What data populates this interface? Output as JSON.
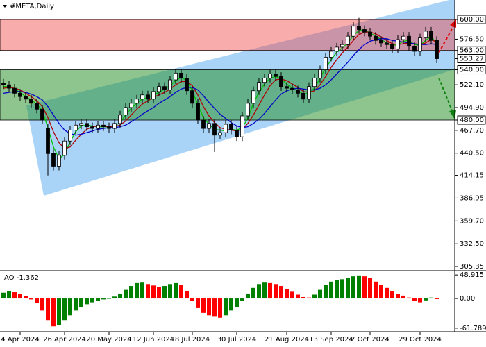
{
  "chart_data": [
    {
      "type": "candlestick",
      "title": "#META,Daily",
      "categories": [
        null,
        null,
        null,
        "4 Apr 2024",
        null,
        null,
        null,
        null,
        null,
        null,
        null,
        "26 Apr 2024",
        null,
        null,
        null,
        null,
        null,
        null,
        null,
        "20 May 2024",
        null,
        null,
        null,
        null,
        null,
        null,
        null,
        "12 Jun 2024",
        null,
        null,
        null,
        null,
        null,
        null,
        "8 Jul 2024",
        null,
        null,
        null,
        null,
        null,
        null,
        null,
        "30 Jul 2024",
        null,
        null,
        null,
        null,
        null,
        null,
        null,
        null,
        "21 Aug 2024",
        null,
        null,
        null,
        null,
        null,
        null,
        null,
        "13 Sep 2024",
        null,
        null,
        null,
        null,
        null,
        null,
        "7 Oct 2024",
        null,
        null,
        null,
        null,
        null,
        null,
        null,
        null,
        "29 Oct 2024",
        null,
        null,
        null
      ],
      "open": [
        524,
        522,
        518,
        512,
        508,
        505,
        500,
        493,
        470,
        440,
        425,
        438,
        455,
        468,
        474,
        476,
        472,
        470,
        474,
        472,
        470,
        476,
        486,
        495,
        500,
        505,
        510,
        505,
        514,
        520,
        516,
        528,
        536,
        530,
        515,
        500,
        480,
        470,
        476,
        462,
        465,
        475,
        468,
        460,
        485,
        500,
        515,
        525,
        530,
        535,
        532,
        520,
        518,
        516,
        512,
        505,
        520,
        530,
        540,
        555,
        562,
        567,
        570,
        580,
        592,
        588,
        585,
        580,
        575,
        572,
        570,
        565,
        576,
        580,
        568,
        562,
        578,
        586,
        575
      ],
      "high": [
        529,
        527,
        523,
        517,
        513,
        510,
        505,
        498,
        475,
        445,
        443,
        460,
        473,
        479,
        481,
        481,
        477,
        479,
        479,
        477,
        481,
        491,
        500,
        505,
        510,
        515,
        515,
        519,
        525,
        525,
        533,
        541,
        541,
        535,
        520,
        505,
        485,
        481,
        481,
        470,
        480,
        480,
        473,
        490,
        505,
        520,
        530,
        535,
        540,
        540,
        537,
        525,
        523,
        521,
        517,
        525,
        535,
        545,
        560,
        567,
        572,
        575,
        585,
        597,
        602,
        593,
        590,
        585,
        580,
        577,
        575,
        581,
        585,
        585,
        573,
        583,
        591,
        591,
        580
      ],
      "low": [
        517,
        513,
        507,
        503,
        500,
        495,
        488,
        475,
        414,
        420,
        420,
        433,
        450,
        463,
        469,
        467,
        465,
        465,
        467,
        465,
        465,
        471,
        481,
        490,
        495,
        500,
        500,
        500,
        509,
        511,
        511,
        523,
        525,
        510,
        495,
        475,
        465,
        465,
        442,
        457,
        460,
        463,
        455,
        455,
        480,
        495,
        510,
        520,
        525,
        527,
        515,
        513,
        511,
        507,
        500,
        500,
        515,
        525,
        535,
        550,
        557,
        562,
        565,
        575,
        583,
        580,
        575,
        570,
        567,
        565,
        560,
        560,
        571,
        563,
        557,
        557,
        573,
        570,
        548
      ],
      "close": [
        522,
        518,
        512,
        508,
        505,
        500,
        493,
        480,
        440,
        425,
        438,
        455,
        468,
        474,
        476,
        472,
        470,
        474,
        472,
        470,
        476,
        486,
        495,
        500,
        505,
        510,
        505,
        514,
        520,
        516,
        528,
        536,
        530,
        515,
        500,
        480,
        470,
        476,
        462,
        465,
        475,
        468,
        460,
        485,
        500,
        515,
        525,
        530,
        535,
        532,
        520,
        518,
        516,
        512,
        505,
        520,
        530,
        540,
        555,
        562,
        567,
        570,
        580,
        592,
        588,
        585,
        580,
        575,
        572,
        570,
        565,
        576,
        580,
        568,
        562,
        578,
        586,
        575,
        553.27
      ],
      "up_color": "#ffffff",
      "down_color": "#000000",
      "series": [
        {
          "color": "#00c000",
          "values": [
            520,
            520,
            517,
            513,
            508,
            504,
            499,
            491,
            471,
            448,
            434,
            439,
            454,
            466,
            473,
            474,
            473,
            472,
            472,
            472,
            473,
            477,
            486,
            494,
            500,
            505,
            507,
            510,
            513,
            517,
            521,
            527,
            531,
            527,
            515,
            498,
            483,
            475,
            469,
            468,
            467,
            469,
            468,
            471,
            482,
            500,
            513,
            523,
            530,
            532,
            529,
            523,
            518,
            515,
            511,
            512,
            518,
            530,
            542,
            552,
            561,
            566,
            572,
            581,
            587,
            588,
            584,
            580,
            576,
            572,
            569,
            570,
            574,
            575,
            570,
            569,
            575,
            580,
            571
          ]
        },
        {
          "color": "#b00000",
          "values": [
            518,
            519,
            518,
            516,
            512,
            508,
            503,
            496,
            483,
            466,
            453,
            446,
            448,
            456,
            463,
            469,
            472,
            473,
            473,
            472,
            472,
            474,
            479,
            486,
            493,
            499,
            503,
            507,
            510,
            513,
            517,
            522,
            526,
            526,
            521,
            510,
            496,
            485,
            477,
            471,
            469,
            468,
            467,
            469,
            476,
            486,
            498,
            510,
            521,
            528,
            529,
            527,
            523,
            519,
            514,
            513,
            515,
            522,
            532,
            543,
            552,
            560,
            567,
            575,
            582,
            585,
            585,
            583,
            579,
            575,
            571,
            570,
            571,
            572,
            571,
            570,
            572,
            576,
            573
          ]
        },
        {
          "color": "#0000c8",
          "values": [
            512,
            513,
            514,
            514,
            513,
            511,
            508,
            504,
            496,
            486,
            476,
            468,
            464,
            462,
            463,
            465,
            467,
            469,
            470,
            471,
            471,
            472,
            474,
            478,
            482,
            487,
            491,
            495,
            500,
            504,
            508,
            513,
            517,
            519,
            519,
            516,
            509,
            501,
            494,
            487,
            482,
            477,
            473,
            471,
            472,
            476,
            481,
            488,
            496,
            504,
            511,
            515,
            517,
            518,
            517,
            516,
            516,
            518,
            522,
            528,
            535,
            542,
            549,
            557,
            564,
            570,
            574,
            576,
            577,
            577,
            575,
            574,
            573,
            572,
            571,
            570,
            570,
            571,
            570
          ]
        }
      ],
      "zones": [
        {
          "from": 563,
          "to": 600,
          "color": "rgba(240,70,70,0.45)"
        },
        {
          "from": 480,
          "to": 540,
          "color": "rgba(30,140,30,0.5)"
        }
      ],
      "ylim": [
        300.4,
        623.2
      ],
      "yticks": [
        {
          "value": 600,
          "label": "600.00",
          "boxed": true
        },
        {
          "value": 576.5,
          "label": "576.50"
        },
        {
          "value": 563,
          "label": "563.00",
          "boxed": true
        },
        {
          "value": 553.27,
          "label": "553.27",
          "boxed": true
        },
        {
          "value": 540,
          "label": "540.00",
          "boxed": true
        },
        {
          "value": 522.1,
          "label": "522.10"
        },
        {
          "value": 494.9,
          "label": "494.90"
        },
        {
          "value": 480,
          "label": "480.00",
          "boxed": true
        },
        {
          "value": 467.7,
          "label": "467.70"
        },
        {
          "value": 440.5,
          "label": "440.50"
        },
        {
          "value": 414.15,
          "label": "414.15"
        },
        {
          "value": 386.95,
          "label": "386.95"
        },
        {
          "value": 359.7,
          "label": "359.70"
        },
        {
          "value": 332.5,
          "label": "332.50"
        },
        {
          "value": 305.35,
          "label": "305.35"
        }
      ]
    },
    {
      "type": "bar",
      "label": "AO -1.362",
      "values": [
        12,
        15,
        13,
        10,
        5,
        -2,
        -10,
        -25,
        -45,
        -58,
        -55,
        -45,
        -35,
        -25,
        -18,
        -12,
        -8,
        -5,
        -2,
        0,
        4,
        10,
        18,
        26,
        32,
        33,
        30,
        27,
        24,
        26,
        30,
        32,
        28,
        15,
        -5,
        -20,
        -30,
        -35,
        -38,
        -40,
        -35,
        -25,
        -18,
        -5,
        10,
        22,
        30,
        33,
        32,
        30,
        26,
        20,
        14,
        8,
        3,
        2,
        8,
        18,
        28,
        35,
        38,
        40,
        42,
        46,
        48,
        46,
        42,
        35,
        28,
        22,
        15,
        10,
        6,
        2,
        -5,
        -8,
        -4,
        2,
        -1.362
      ],
      "up_color": "#008000",
      "down_color": "#ff0000",
      "ylim": [
        -69.2,
        57.8
      ],
      "yticks": [
        48.915,
        {
          "value": 0,
          "label": "0.00"
        },
        -61.789
      ]
    }
  ]
}
